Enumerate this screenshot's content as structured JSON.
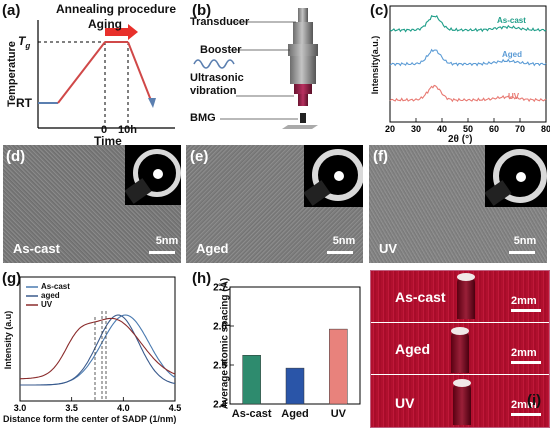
{
  "panels": {
    "a": {
      "label": "(a)",
      "title_line1": "Annealing procedure",
      "title_line2": "Aging",
      "ylabel": "Temperature",
      "tg_label": "T",
      "tg_sub": "g",
      "rt_label": "RT",
      "xlabel": "Time",
      "tick_0": "0",
      "tick_10h": "10h"
    },
    "b": {
      "label": "(b)",
      "transducer": "Transducer",
      "booster": "Booster",
      "ultrasonic": "Ultrasonic",
      "vibration": "vibration",
      "bmg": "BMG"
    },
    "c": {
      "label": "(c)",
      "ylabel": "Intensity(a.u.)",
      "xlabel": "2θ (°)",
      "xticks": [
        "20",
        "30",
        "40",
        "50",
        "60",
        "70",
        "80"
      ],
      "series_labels": [
        "As-cast",
        "Aged",
        "UV"
      ],
      "colors": [
        "#1f9e89",
        "#5b9bd5",
        "#e87a73"
      ]
    },
    "d": {
      "label": "(d)",
      "name": "As-cast",
      "scale": "5nm"
    },
    "e": {
      "label": "(e)",
      "name": "Aged",
      "scale": "5nm"
    },
    "f": {
      "label": "(f)",
      "name": "UV",
      "scale": "5nm"
    },
    "g": {
      "label": "(g)",
      "ylabel": "Intensity (a.u)",
      "xlabel": "Distance form the center of SADP (1/nm)",
      "xticks": [
        "3.0",
        "3.5",
        "4.0",
        "4.5"
      ],
      "legend": [
        "As-cast",
        "aged",
        "UV"
      ],
      "colors": [
        "#4a7ab0",
        "#3a5a8c",
        "#8b2c2c"
      ]
    },
    "h": {
      "label": "(h)"
    },
    "i": {
      "label": "(i)",
      "names": [
        "As-cast",
        "Aged",
        "UV"
      ],
      "scale": "2mm"
    }
  },
  "chart_data": {
    "type": "bar",
    "categories": [
      "As-cast",
      "Aged",
      "UV"
    ],
    "values": [
      2.525,
      2.492,
      2.592
    ],
    "colors": [
      "#2e8b6e",
      "#2a55a8",
      "#e8827c"
    ],
    "ylabel": "Average atomic spacing (Å)",
    "xlabel": "",
    "ylim": [
      2.4,
      2.7
    ],
    "yticks": [
      "2.4",
      "2.5",
      "2.6",
      "2.7"
    ]
  }
}
